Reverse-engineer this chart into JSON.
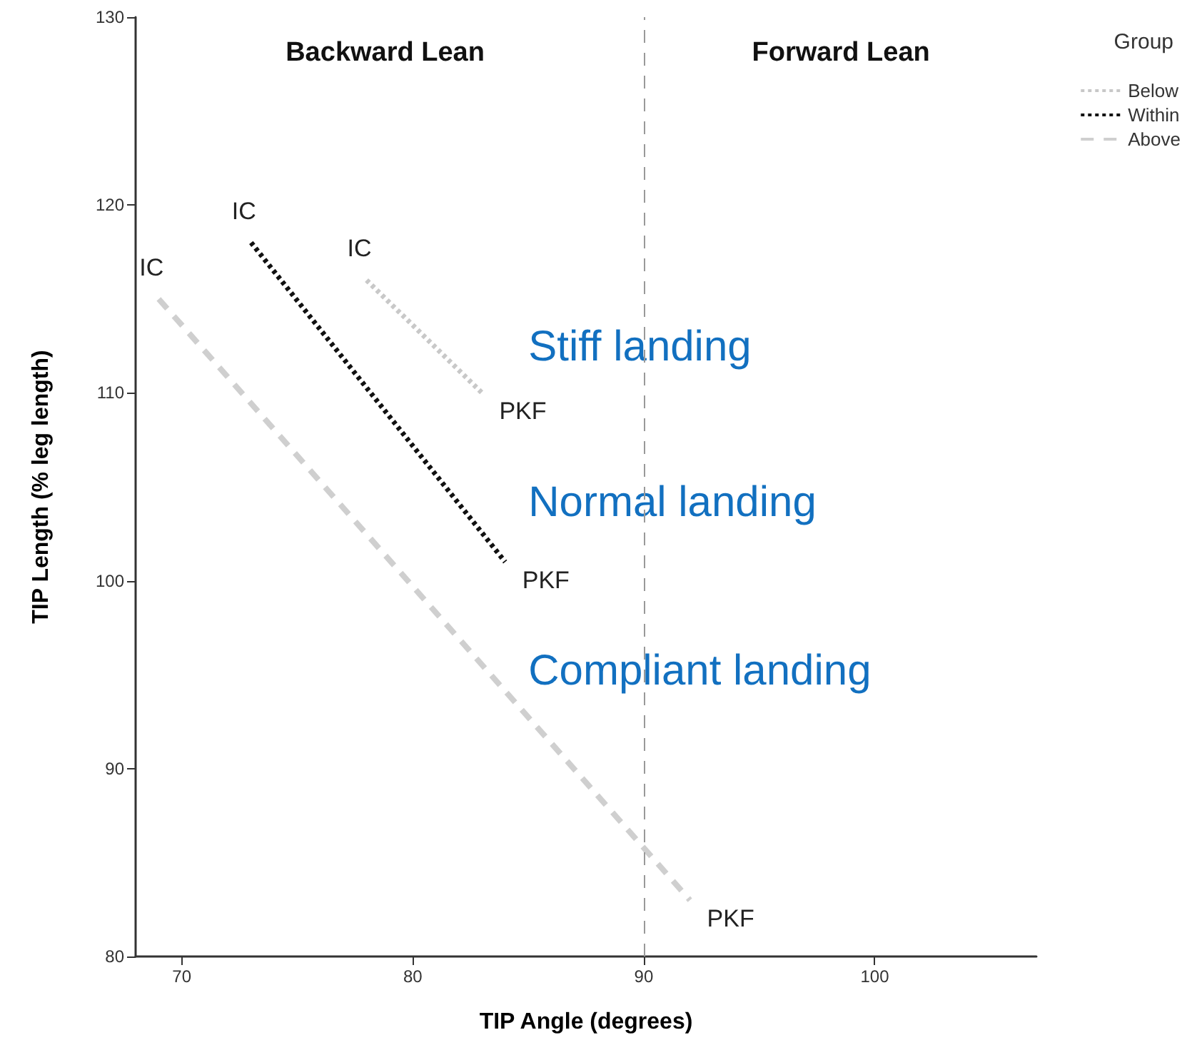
{
  "chart_data": {
    "type": "line",
    "xlabel": "TIP Angle (degrees)",
    "ylabel": "TIP Length (% leg length)",
    "legend_title": "Group",
    "legend": "top right",
    "grid": false,
    "marker": "none",
    "xlim": [
      68,
      107
    ],
    "xticks": [
      70,
      80,
      90,
      100
    ],
    "ylim": [
      80,
      130
    ],
    "yticks": [
      80,
      90,
      100,
      110,
      120,
      130
    ],
    "series": [
      {
        "name": "Below",
        "color": "#c8c8c8",
        "line_style": "dotted",
        "x": [
          78,
          83
        ],
        "values": [
          116,
          110
        ]
      },
      {
        "name": "Within",
        "color": "#111111",
        "line_style": "dotted",
        "x": [
          73,
          84
        ],
        "values": [
          118,
          101
        ]
      },
      {
        "name": "Above",
        "color": "#cfcfcf",
        "line_style": "dashed",
        "x": [
          69,
          92
        ],
        "values": [
          115,
          83
        ]
      }
    ],
    "ref_lines": [
      {
        "axis": "x",
        "value": 90,
        "color": "#999999",
        "line_style": "dashed"
      }
    ],
    "annotations": [
      {
        "text": "IC",
        "x": 78,
        "y": 116
      },
      {
        "text": "IC",
        "x": 73,
        "y": 118
      },
      {
        "text": "IC",
        "x": 69,
        "y": 115
      },
      {
        "text": "PKF",
        "x": 83,
        "y": 110
      },
      {
        "text": "PKF",
        "x": 84,
        "y": 101
      },
      {
        "text": "PKF",
        "x": 92,
        "y": 83
      },
      "Backward Lean",
      "Forward Lean",
      "Stiff landing",
      "Normal landing",
      "Compliant landing"
    ]
  }
}
